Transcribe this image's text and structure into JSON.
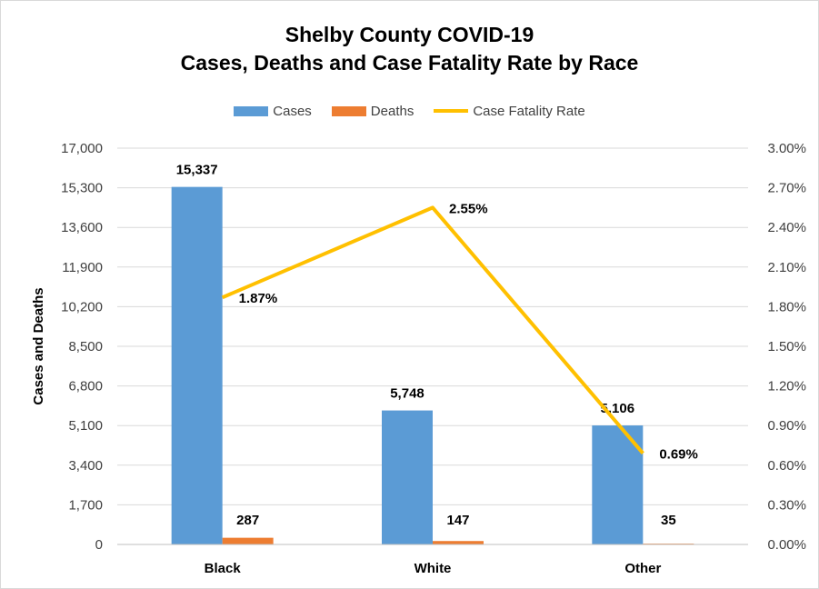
{
  "title_line1": "Shelby County COVID-19",
  "title_line2": "Cases, Deaths and Case Fatality Rate by Race",
  "colors": {
    "cases": "#5b9bd5",
    "deaths": "#ed7d31",
    "cfr": "#ffc000",
    "grid": "#d9d9d9"
  },
  "chart_data": {
    "type": "bar",
    "categories": [
      "Black",
      "White",
      "Other"
    ],
    "series": [
      {
        "name": "Cases",
        "type": "bar",
        "axis": "left",
        "values": [
          15337,
          5748,
          5106
        ],
        "labels": [
          "15,337",
          "5,748",
          "5,106"
        ]
      },
      {
        "name": "Deaths",
        "type": "bar",
        "axis": "left",
        "values": [
          287,
          147,
          35
        ],
        "labels": [
          "287",
          "147",
          "35"
        ]
      },
      {
        "name": "Case Fatality Rate",
        "type": "line",
        "axis": "right",
        "values": [
          1.87,
          2.55,
          0.69
        ],
        "labels": [
          "1.87%",
          "2.55%",
          "0.69%"
        ]
      }
    ],
    "ylabel": "Cases and Deaths",
    "ylim": [
      0,
      17000
    ],
    "yticks": [
      "0",
      "1,700",
      "3,400",
      "5,100",
      "6,800",
      "8,500",
      "10,200",
      "11,900",
      "13,600",
      "15,300",
      "17,000"
    ],
    "y2lim": [
      0,
      3.0
    ],
    "y2ticks": [
      "0.00%",
      "0.30%",
      "0.60%",
      "0.90%",
      "1.20%",
      "1.50%",
      "1.80%",
      "2.10%",
      "2.40%",
      "2.70%",
      "3.00%"
    ],
    "grid": true,
    "legend": "top-center"
  }
}
